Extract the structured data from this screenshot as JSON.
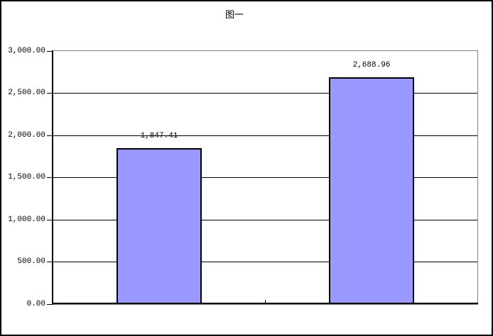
{
  "chart_data": {
    "type": "bar",
    "title": "图一",
    "categories": [
      "",
      ""
    ],
    "values": [
      1847.41,
      2688.96
    ],
    "value_labels": [
      "1,847.41",
      "2,688.96"
    ],
    "ylabel": "",
    "xlabel": "",
    "ylim": [
      0,
      3000
    ],
    "ytick_step": 500,
    "ytick_labels": [
      "0.00",
      "500.00",
      "1,000.00",
      "1,500.00",
      "2,000.00",
      "2,500.00",
      "3,000.00"
    ],
    "grid": true,
    "legend": false,
    "bar_fill_color": "#9999ff",
    "bar_border_color": "#000000",
    "plot_border_color": "#808080",
    "axis_color": "#000000",
    "gap_width_ratio": 1.5
  }
}
